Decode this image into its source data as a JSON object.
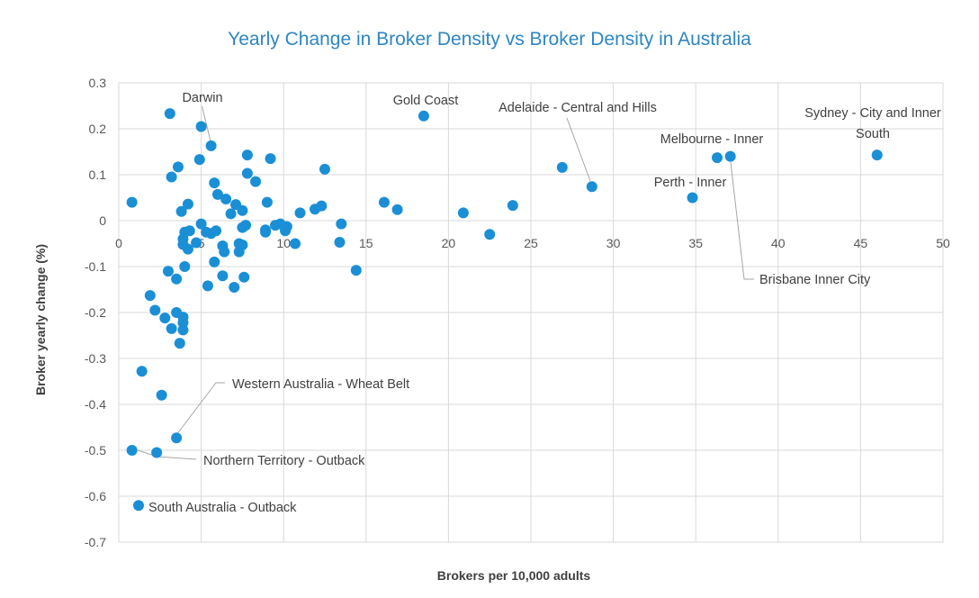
{
  "chart_data": {
    "type": "scatter",
    "title": "Yearly Change in Broker Density vs Broker Density in Australia",
    "xlabel": "Brokers per 10,000 adults",
    "ylabel": "Broker yearly change (%)",
    "xlim": [
      0,
      50
    ],
    "ylim": [
      -0.7,
      0.3
    ],
    "xticks": [
      "0",
      "5",
      "10",
      "15",
      "20",
      "25",
      "30",
      "35",
      "40",
      "45",
      "50"
    ],
    "yticks": [
      "0.3",
      "0.2",
      "0.1",
      "0",
      "-0.1",
      "-0.2",
      "-0.3",
      "-0.4",
      "-0.5",
      "-0.6",
      "-0.7"
    ],
    "grid": true,
    "legend": "none",
    "points": [
      [
        0.8,
        0.04
      ],
      [
        3.1,
        0.233
      ],
      [
        3.2,
        0.095
      ],
      [
        3.6,
        0.117
      ],
      [
        3.8,
        0.02
      ],
      [
        4.0,
        -0.025
      ],
      [
        4.3,
        -0.022
      ],
      [
        4.2,
        0.036
      ],
      [
        3.9,
        -0.04
      ],
      [
        3.9,
        -0.052
      ],
      [
        4.2,
        -0.062
      ],
      [
        4.0,
        -0.1
      ],
      [
        3.0,
        -0.11
      ],
      [
        3.5,
        -0.127
      ],
      [
        1.9,
        -0.163
      ],
      [
        2.2,
        -0.195
      ],
      [
        2.8,
        -0.212
      ],
      [
        3.5,
        -0.2
      ],
      [
        3.9,
        -0.21
      ],
      [
        3.9,
        -0.222
      ],
      [
        3.2,
        -0.235
      ],
      [
        3.9,
        -0.238
      ],
      [
        3.7,
        -0.267
      ],
      [
        1.4,
        -0.328
      ],
      [
        2.6,
        -0.38
      ],
      [
        5.0,
        0.205
      ],
      [
        5.6,
        0.163
      ],
      [
        4.9,
        0.133
      ],
      [
        4.7,
        -0.048
      ],
      [
        5.0,
        -0.007
      ],
      [
        5.3,
        -0.025
      ],
      [
        5.6,
        -0.028
      ],
      [
        5.8,
        0.082
      ],
      [
        6.0,
        0.057
      ],
      [
        5.9,
        -0.022
      ],
      [
        5.8,
        -0.09
      ],
      [
        5.4,
        -0.142
      ],
      [
        6.3,
        -0.055
      ],
      [
        6.4,
        -0.068
      ],
      [
        6.3,
        -0.12
      ],
      [
        6.5,
        0.047
      ],
      [
        6.8,
        0.015
      ],
      [
        7.1,
        0.035
      ],
      [
        7.5,
        0.022
      ],
      [
        7.5,
        -0.015
      ],
      [
        7.7,
        -0.01
      ],
      [
        7.3,
        -0.05
      ],
      [
        7.5,
        -0.053
      ],
      [
        7.3,
        -0.068
      ],
      [
        7.6,
        -0.123
      ],
      [
        7.0,
        -0.145
      ],
      [
        7.8,
        0.143
      ],
      [
        7.8,
        0.103
      ],
      [
        8.3,
        0.085
      ],
      [
        9.2,
        0.135
      ],
      [
        9.0,
        0.04
      ],
      [
        8.9,
        -0.02
      ],
      [
        8.9,
        -0.025
      ],
      [
        9.5,
        -0.01
      ],
      [
        9.8,
        -0.007
      ],
      [
        10.1,
        -0.022
      ],
      [
        10.2,
        -0.013
      ],
      [
        10.7,
        -0.05
      ],
      [
        11.0,
        0.017
      ],
      [
        11.9,
        0.025
      ],
      [
        12.3,
        0.032
      ],
      [
        12.5,
        0.112
      ],
      [
        13.5,
        -0.007
      ],
      [
        13.4,
        -0.047
      ],
      [
        14.4,
        -0.108
      ],
      [
        16.1,
        0.04
      ],
      [
        16.9,
        0.024
      ],
      [
        18.5,
        0.228
      ],
      [
        20.9,
        0.017
      ],
      [
        22.5,
        -0.03
      ],
      [
        23.9,
        0.033
      ],
      [
        26.9,
        0.116
      ],
      [
        28.7,
        0.074
      ],
      [
        34.8,
        0.05
      ],
      [
        36.3,
        0.137
      ],
      [
        37.1,
        0.14
      ],
      [
        46.0,
        0.143
      ],
      [
        3.5,
        -0.473
      ],
      [
        2.3,
        -0.505
      ],
      [
        0.8,
        -0.5
      ],
      [
        1.2,
        -0.62
      ]
    ],
    "annotations": [
      {
        "label": "Darwin",
        "x": 5.6,
        "y": 0.163
      },
      {
        "label": "Gold Coast",
        "x": 18.5,
        "y": 0.228
      },
      {
        "label": "Adelaide - Central and Hills",
        "x": 28.7,
        "y": 0.074
      },
      {
        "label": "Sydney - City and Inner South",
        "x": 46.0,
        "y": 0.143
      },
      {
        "label": "Melbourne - Inner",
        "x": 36.3,
        "y": 0.137
      },
      {
        "label": "Perth - Inner",
        "x": 34.8,
        "y": 0.05
      },
      {
        "label": "Brisbane Inner City",
        "x": 37.1,
        "y": 0.14
      },
      {
        "label": "Western Australia - Wheat Belt",
        "x": 3.5,
        "y": -0.473
      },
      {
        "label": "Northern Territory - Outback",
        "x": 0.8,
        "y": -0.5
      },
      {
        "label": "South Australia - Outback",
        "x": 1.2,
        "y": -0.62
      }
    ]
  },
  "colors": {
    "point": "#1a8fd6",
    "title": "#2e86c1",
    "grid": "#d9d9d9",
    "leader": "#a6a6a6",
    "text": "#404040"
  }
}
